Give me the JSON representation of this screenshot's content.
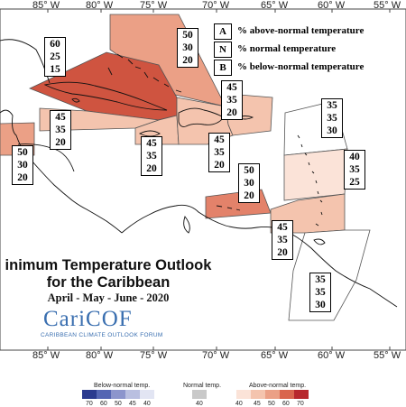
{
  "map": {
    "title_line1": "inimum Temperature Outlook",
    "title_line2": "for the Caribbean",
    "period": "April - May - June - 2020",
    "logo_text": "CariCOF",
    "logo_subtitle": "CARIBBEAN CLIMATE OUTLOOK FORUM",
    "lon_labels_top": [
      "85° W",
      "80° W",
      "75° W",
      "70° W",
      "65° W",
      "60° W",
      "55° W"
    ],
    "lon_labels_bottom": [
      "85° W",
      "80° W",
      "75° W",
      "70° W",
      "65° W",
      "60° W",
      "55° W"
    ],
    "key": [
      {
        "letter": "A",
        "text": "% above-normal temperature"
      },
      {
        "letter": "N",
        "text": "% normal temperature"
      },
      {
        "letter": "B",
        "text": "% below-normal temperature"
      }
    ],
    "regions": [
      {
        "id": "bahamas",
        "values": [
          "50",
          "30",
          "20"
        ],
        "color": "#eba086"
      },
      {
        "id": "cuba",
        "values": [
          "60",
          "25",
          "15"
        ],
        "color": "#cf5440"
      },
      {
        "id": "cayman",
        "values": [
          "45",
          "35",
          "20"
        ],
        "color": "#f4c4ae"
      },
      {
        "id": "belize",
        "values": [
          "50",
          "30",
          "20"
        ],
        "color": "#eba086"
      },
      {
        "id": "jamaica",
        "values": [
          "45",
          "35",
          "20"
        ],
        "color": "#f4c4ae"
      },
      {
        "id": "hispaniola",
        "values": [
          "45",
          "35",
          "20"
        ],
        "color": "#f4c4ae"
      },
      {
        "id": "turks-caicos",
        "values": [
          "45",
          "35",
          "20"
        ],
        "color": "#f4c4ae"
      },
      {
        "id": "caribbean-sea",
        "values": [
          "50",
          "30",
          "20"
        ],
        "color": "#e3826a"
      },
      {
        "id": "atlantic-north",
        "values": [
          "35",
          "35",
          "30"
        ],
        "color": "#ffffff"
      },
      {
        "id": "leeward-islands",
        "values": [
          "40",
          "35",
          "25"
        ],
        "color": "#fbe3d8"
      },
      {
        "id": "windward-islands",
        "values": [
          "45",
          "35",
          "20"
        ],
        "color": "#f4c4ae"
      },
      {
        "id": "guianas",
        "values": [
          "35",
          "35",
          "30"
        ],
        "color": "#ffffff"
      }
    ],
    "colorbar": {
      "below_label": "Below-normal temp.",
      "normal_label": "Normal temp.",
      "above_label": "Above-normal temp.",
      "below_ticks": [
        "70",
        "60",
        "50",
        "45",
        "40"
      ],
      "normal_ticks": [
        "40"
      ],
      "above_ticks": [
        "40",
        "45",
        "50",
        "60",
        "70"
      ],
      "below_colors": [
        "#2b3b8f",
        "#5566b3",
        "#8c95cc",
        "#b9bfe0",
        "#e2e5f3"
      ],
      "normal_color": "#c9c9c9",
      "above_colors": [
        "#fbe3d8",
        "#f4c4ae",
        "#eba086",
        "#d9664e",
        "#b7282d"
      ]
    }
  }
}
